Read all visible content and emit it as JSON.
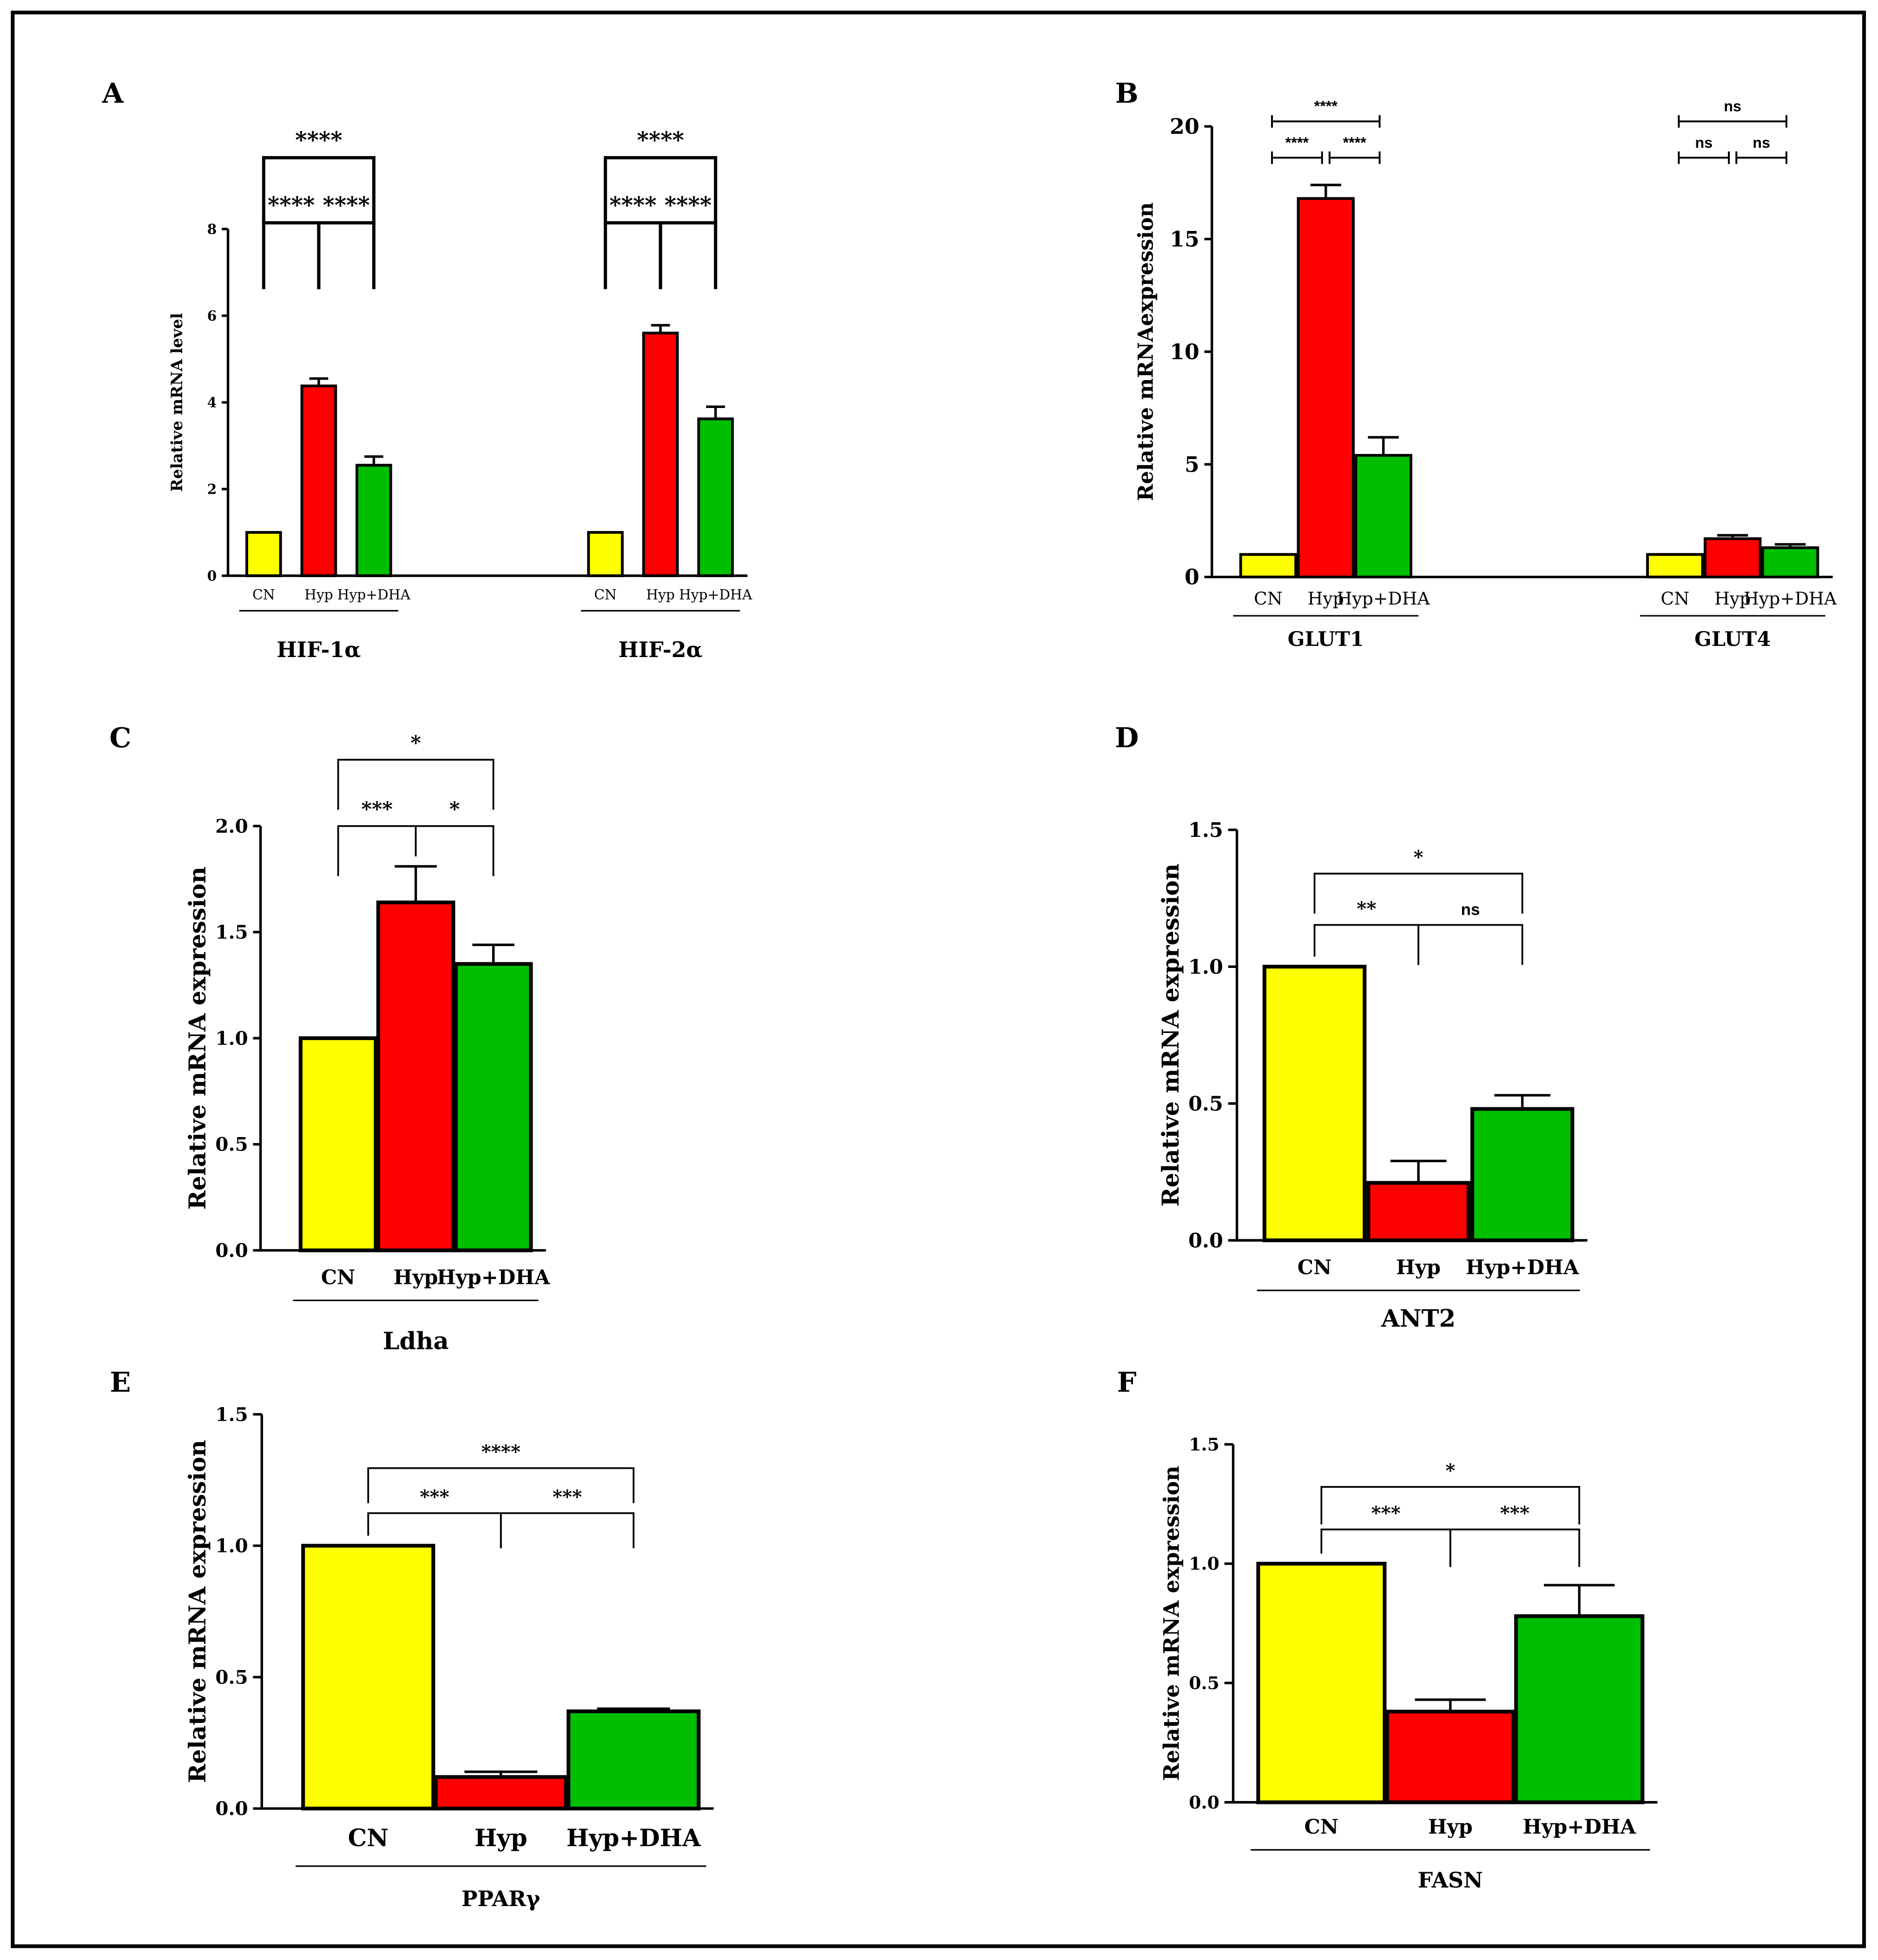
{
  "colors": {
    "CN": "#FFFF00",
    "Hyp": "#FF0000",
    "Hyp+DHA": "#00BF00",
    "outline": "#000000"
  },
  "chart_data": [
    {
      "panel": "A",
      "type": "bar",
      "style": "small",
      "ylabel": "Relative mRNA level",
      "ylim": [
        0,
        8
      ],
      "yticks": [
        "0",
        "2",
        "4",
        "6",
        "8"
      ],
      "groups": [
        {
          "label": "HIF-1α",
          "categories": [
            "CN",
            "Hyp",
            "Hyp+DHA"
          ],
          "values": [
            1.0,
            4.38,
            2.55
          ],
          "errors": [
            0,
            0.17,
            0.2
          ],
          "comparisons": [
            {
              "pair": [
                0,
                1
              ],
              "label": "****",
              "level": 0
            },
            {
              "pair": [
                1,
                2
              ],
              "label": "****",
              "level": 0
            },
            {
              "pair": [
                0,
                2
              ],
              "label": "****",
              "level": 1
            }
          ]
        },
        {
          "label": "HIF-2α",
          "categories": [
            "CN",
            "Hyp",
            "Hyp+DHA"
          ],
          "values": [
            1.0,
            5.6,
            3.62
          ],
          "errors": [
            0,
            0.18,
            0.28
          ],
          "comparisons": [
            {
              "pair": [
                0,
                1
              ],
              "label": "****",
              "level": 0
            },
            {
              "pair": [
                1,
                2
              ],
              "label": "****",
              "level": 0
            },
            {
              "pair": [
                0,
                2
              ],
              "label": "****",
              "level": 1
            }
          ]
        }
      ]
    },
    {
      "panel": "B",
      "type": "bar",
      "style": "sans-stats",
      "ylabel": "Relative mRNAexpression",
      "ylim": [
        0,
        20
      ],
      "yticks": [
        "0",
        "5",
        "10",
        "15",
        "20"
      ],
      "groups": [
        {
          "label": "GLUT1",
          "categories": [
            "CN",
            "Hyp",
            "Hyp+DHA"
          ],
          "values": [
            1.0,
            16.8,
            5.4
          ],
          "errors": [
            0,
            0.6,
            0.8
          ],
          "comparisons": [
            {
              "pair": [
                0,
                1
              ],
              "label": "****",
              "level": 0
            },
            {
              "pair": [
                1,
                2
              ],
              "label": "****",
              "level": 0
            },
            {
              "pair": [
                0,
                2
              ],
              "label": "****",
              "level": 1
            }
          ]
        },
        {
          "label": "GLUT4",
          "categories": [
            "CN",
            "Hyp",
            "Hyp+DHA"
          ],
          "values": [
            1.0,
            1.7,
            1.3
          ],
          "errors": [
            0,
            0.15,
            0.15
          ],
          "comparisons": [
            {
              "pair": [
                0,
                1
              ],
              "label": "ns",
              "level": 0
            },
            {
              "pair": [
                1,
                2
              ],
              "label": "ns",
              "level": 0
            },
            {
              "pair": [
                0,
                2
              ],
              "label": "ns",
              "level": 1
            }
          ]
        }
      ]
    },
    {
      "panel": "C",
      "type": "bar",
      "ylabel": "Relative mRNA expression",
      "ylim": [
        0,
        2
      ],
      "yticks": [
        "0.0",
        "0.5",
        "1.0",
        "1.5",
        "2.0"
      ],
      "groups": [
        {
          "label": "Ldha",
          "categories": [
            "CN",
            "Hyp",
            "Hyp+DHA"
          ],
          "values": [
            1.0,
            1.64,
            1.35
          ],
          "errors": [
            0,
            0.17,
            0.09
          ],
          "comparisons": [
            {
              "pair": [
                0,
                1
              ],
              "label": "***",
              "level": 0
            },
            {
              "pair": [
                1,
                2
              ],
              "label": "*",
              "level": 0
            },
            {
              "pair": [
                0,
                2
              ],
              "label": "*",
              "level": 1
            }
          ]
        }
      ]
    },
    {
      "panel": "D",
      "type": "bar",
      "ylabel": "Relative mRNA expression",
      "ylim": [
        0,
        1.5
      ],
      "yticks": [
        "0.0",
        "0.5",
        "1.0",
        "1.5"
      ],
      "groups": [
        {
          "label": "ANT2",
          "categories": [
            "CN",
            "Hyp",
            "Hyp+DHA"
          ],
          "values": [
            1.0,
            0.21,
            0.48
          ],
          "errors": [
            0,
            0.08,
            0.05
          ],
          "comparisons": [
            {
              "pair": [
                0,
                1
              ],
              "label": "**",
              "level": 0
            },
            {
              "pair": [
                1,
                2
              ],
              "label": "ns",
              "level": 0
            },
            {
              "pair": [
                0,
                2
              ],
              "label": "*",
              "level": 1
            }
          ]
        }
      ]
    },
    {
      "panel": "E",
      "type": "bar",
      "ylabel": "Relative mRNA expression",
      "ylim": [
        0,
        1.5
      ],
      "yticks": [
        "0.0",
        "0.5",
        "1.0",
        "1.5"
      ],
      "groups": [
        {
          "label": "PPARγ",
          "categories": [
            "CN",
            "Hyp",
            "Hyp+DHA"
          ],
          "values": [
            1.0,
            0.12,
            0.37
          ],
          "errors": [
            0,
            0.02,
            0.01
          ],
          "comparisons": [
            {
              "pair": [
                0,
                1
              ],
              "label": "***",
              "level": 0
            },
            {
              "pair": [
                1,
                2
              ],
              "label": "***",
              "level": 0
            },
            {
              "pair": [
                0,
                2
              ],
              "label": "****",
              "level": 1
            }
          ]
        }
      ]
    },
    {
      "panel": "F",
      "type": "bar",
      "ylabel": "Relative mRNA expression",
      "ylim": [
        0,
        1.5
      ],
      "yticks": [
        "0.0",
        "0.5",
        "1.0",
        "1.5"
      ],
      "groups": [
        {
          "label": "FASN",
          "categories": [
            "CN",
            "Hyp",
            "Hyp+DHA"
          ],
          "values": [
            1.0,
            0.38,
            0.78
          ],
          "errors": [
            0,
            0.05,
            0.13
          ],
          "comparisons": [
            {
              "pair": [
                0,
                1
              ],
              "label": "***",
              "level": 0
            },
            {
              "pair": [
                1,
                2
              ],
              "label": "***",
              "level": 0
            },
            {
              "pair": [
                0,
                2
              ],
              "label": "*",
              "level": 1
            }
          ]
        }
      ]
    }
  ]
}
